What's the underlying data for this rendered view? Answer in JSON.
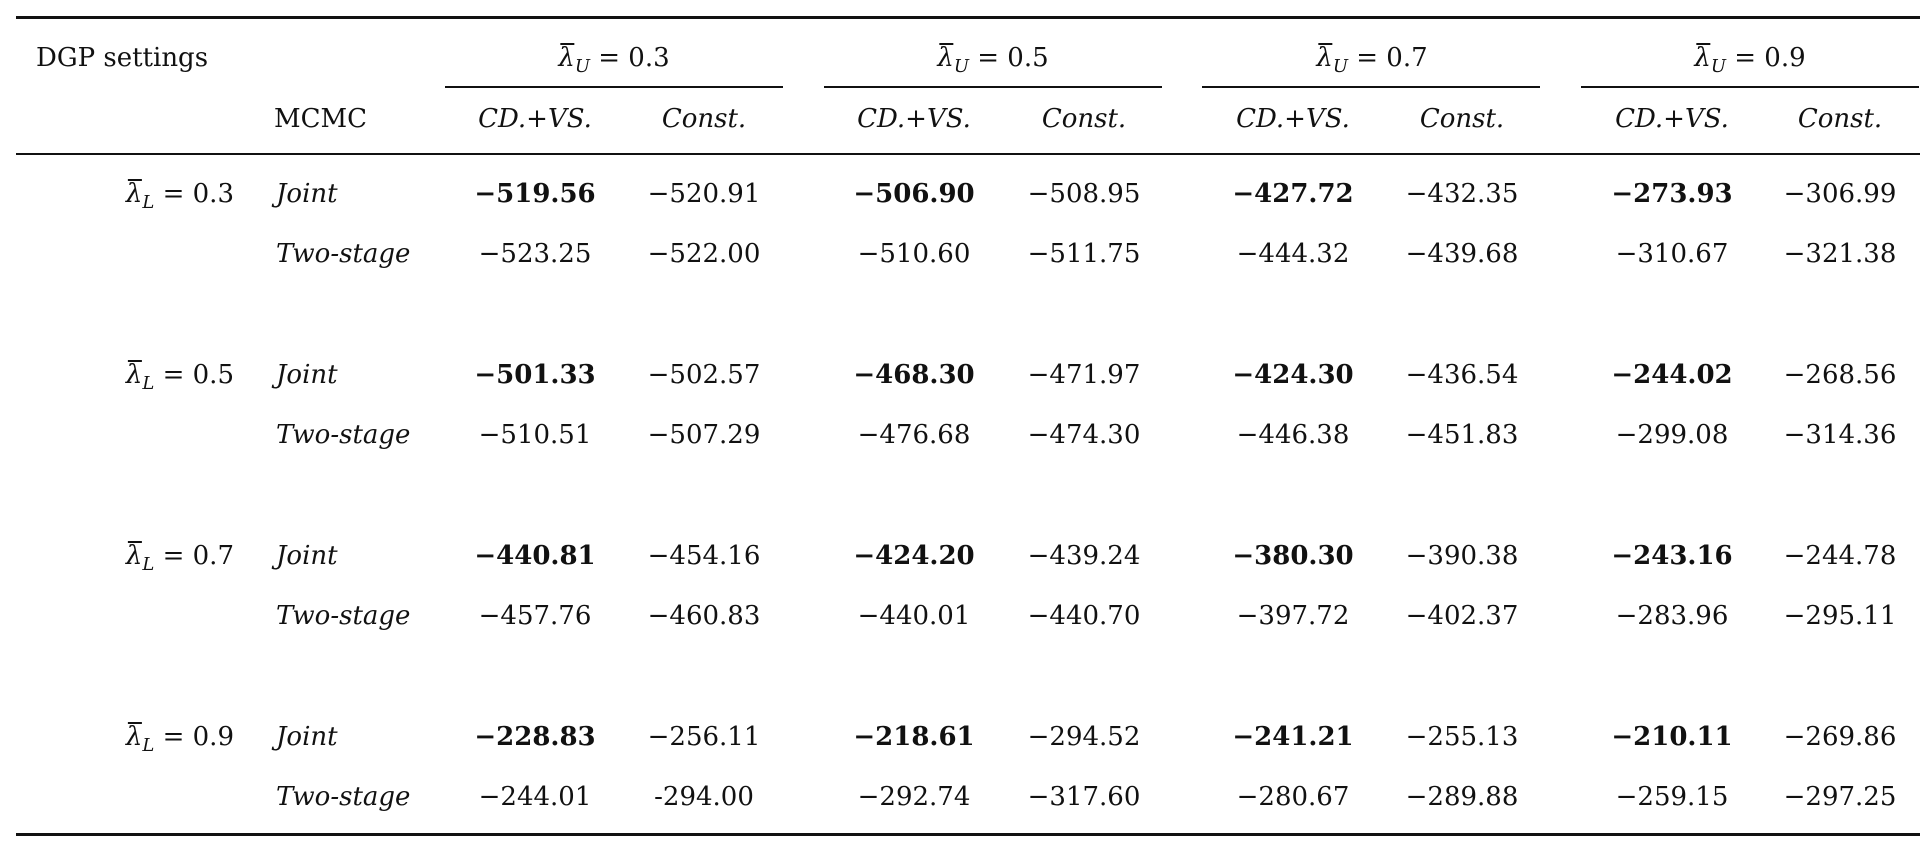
{
  "header": {
    "dgp_label": "DGP settings",
    "mcmc_label": "MCMC",
    "groups": [
      {
        "sym": "λ",
        "sub": "U",
        "rest": " = 0.3"
      },
      {
        "sym": "λ",
        "sub": "U",
        "rest": " = 0.5"
      },
      {
        "sym": "λ",
        "sub": "U",
        "rest": " = 0.7"
      },
      {
        "sym": "λ",
        "sub": "U",
        "rest": " = 0.9"
      }
    ],
    "subcols": [
      "CD.+VS.",
      "Const.",
      "CD.+VS.",
      "Const.",
      "CD.+VS.",
      "Const.",
      "CD.+VS.",
      "Const."
    ]
  },
  "rows": [
    {
      "dgp": {
        "sym": "λ",
        "sub": "L",
        "rest": " = 0.3"
      },
      "method": "Joint",
      "values": [
        "−519.56",
        "−520.91",
        "−506.90",
        "−508.95",
        "−427.72",
        "−432.35",
        "−273.93",
        "−306.99"
      ]
    },
    {
      "dgp": null,
      "method": "Two-stage",
      "values": [
        "−523.25",
        "−522.00",
        "−510.60",
        "−511.75",
        "−444.32",
        "−439.68",
        "−310.67",
        "−321.38"
      ]
    },
    {
      "dgp": {
        "sym": "λ",
        "sub": "L",
        "rest": " = 0.5"
      },
      "method": "Joint",
      "values": [
        "−501.33",
        "−502.57",
        "−468.30",
        "−471.97",
        "−424.30",
        "−436.54",
        "−244.02",
        "−268.56"
      ]
    },
    {
      "dgp": null,
      "method": "Two-stage",
      "values": [
        "−510.51",
        "−507.29",
        "−476.68",
        "−474.30",
        "−446.38",
        "−451.83",
        "−299.08",
        "−314.36"
      ]
    },
    {
      "dgp": {
        "sym": "λ",
        "sub": "L",
        "rest": " = 0.7"
      },
      "method": "Joint",
      "values": [
        "−440.81",
        "−454.16",
        "−424.20",
        "−439.24",
        "−380.30",
        "−390.38",
        "−243.16",
        "−244.78"
      ]
    },
    {
      "dgp": null,
      "method": "Two-stage",
      "values": [
        "−457.76",
        "−460.83",
        "−440.01",
        "−440.70",
        "−397.72",
        "−402.37",
        "−283.96",
        "−295.11"
      ]
    },
    {
      "dgp": {
        "sym": "λ",
        "sub": "L",
        "rest": " = 0.9"
      },
      "method": "Joint",
      "values": [
        "−228.83",
        "−256.11",
        "−218.61",
        "−294.52",
        "−241.21",
        "−255.13",
        "−210.11",
        "−269.86"
      ]
    },
    {
      "dgp": null,
      "method": "Two-stage",
      "values": [
        "−244.01",
        "-294.00",
        "−292.74",
        "−317.60",
        "−280.67",
        "−289.88",
        "−259.15",
        "−297.25"
      ]
    }
  ],
  "bold_columns_in_joint_rows": [
    0,
    2,
    4,
    6
  ]
}
